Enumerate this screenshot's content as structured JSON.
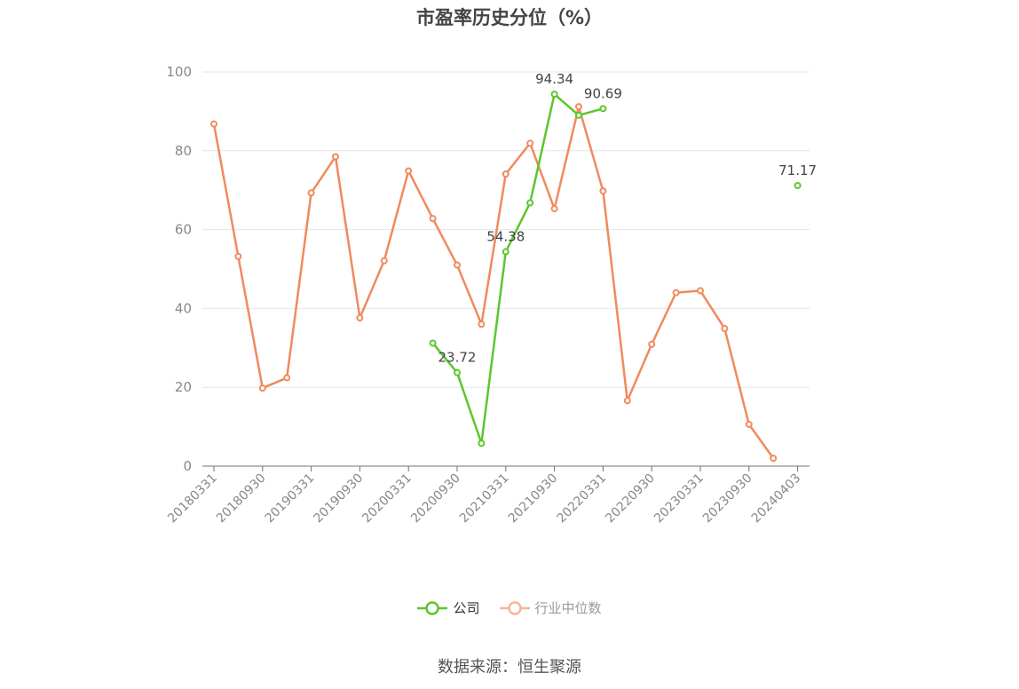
{
  "chart_data": {
    "type": "line",
    "title": "市盈率历史分位（%）",
    "source": "数据来源：恒生聚源",
    "ylim": [
      0,
      100
    ],
    "yticks": [
      0,
      20,
      40,
      60,
      80,
      100
    ],
    "x_labels": [
      "20180331",
      "20180930",
      "20190331",
      "20190930",
      "20200331",
      "20200930",
      "20210331",
      "20210930",
      "20220331",
      "20220930",
      "20230331",
      "20230930",
      "20240403"
    ],
    "series": [
      {
        "name": "公司",
        "color": "#5cc62e",
        "values": [
          null,
          null,
          null,
          null,
          null,
          null,
          null,
          null,
          null,
          31.2,
          23.72,
          5.8,
          54.38,
          66.8,
          94.34,
          89.0,
          90.69,
          null,
          null,
          null,
          null,
          null,
          null,
          null,
          71.17
        ],
        "labels": [
          {
            "index": 10,
            "text": "23.72"
          },
          {
            "index": 12,
            "text": "54.38"
          },
          {
            "index": 14,
            "text": "94.34"
          },
          {
            "index": 16,
            "text": "90.69"
          },
          {
            "index": 24,
            "text": "71.17"
          }
        ]
      },
      {
        "name": "行业中位数",
        "color": "#f08a5d",
        "values": [
          86.8,
          53.2,
          19.8,
          22.4,
          69.3,
          78.5,
          37.6,
          52.1,
          74.9,
          62.8,
          51.0,
          36.0,
          74.1,
          81.9,
          65.3,
          91.2,
          69.8,
          16.6,
          30.9,
          44.0,
          44.5,
          34.9,
          10.6,
          2.0,
          null
        ]
      }
    ]
  }
}
